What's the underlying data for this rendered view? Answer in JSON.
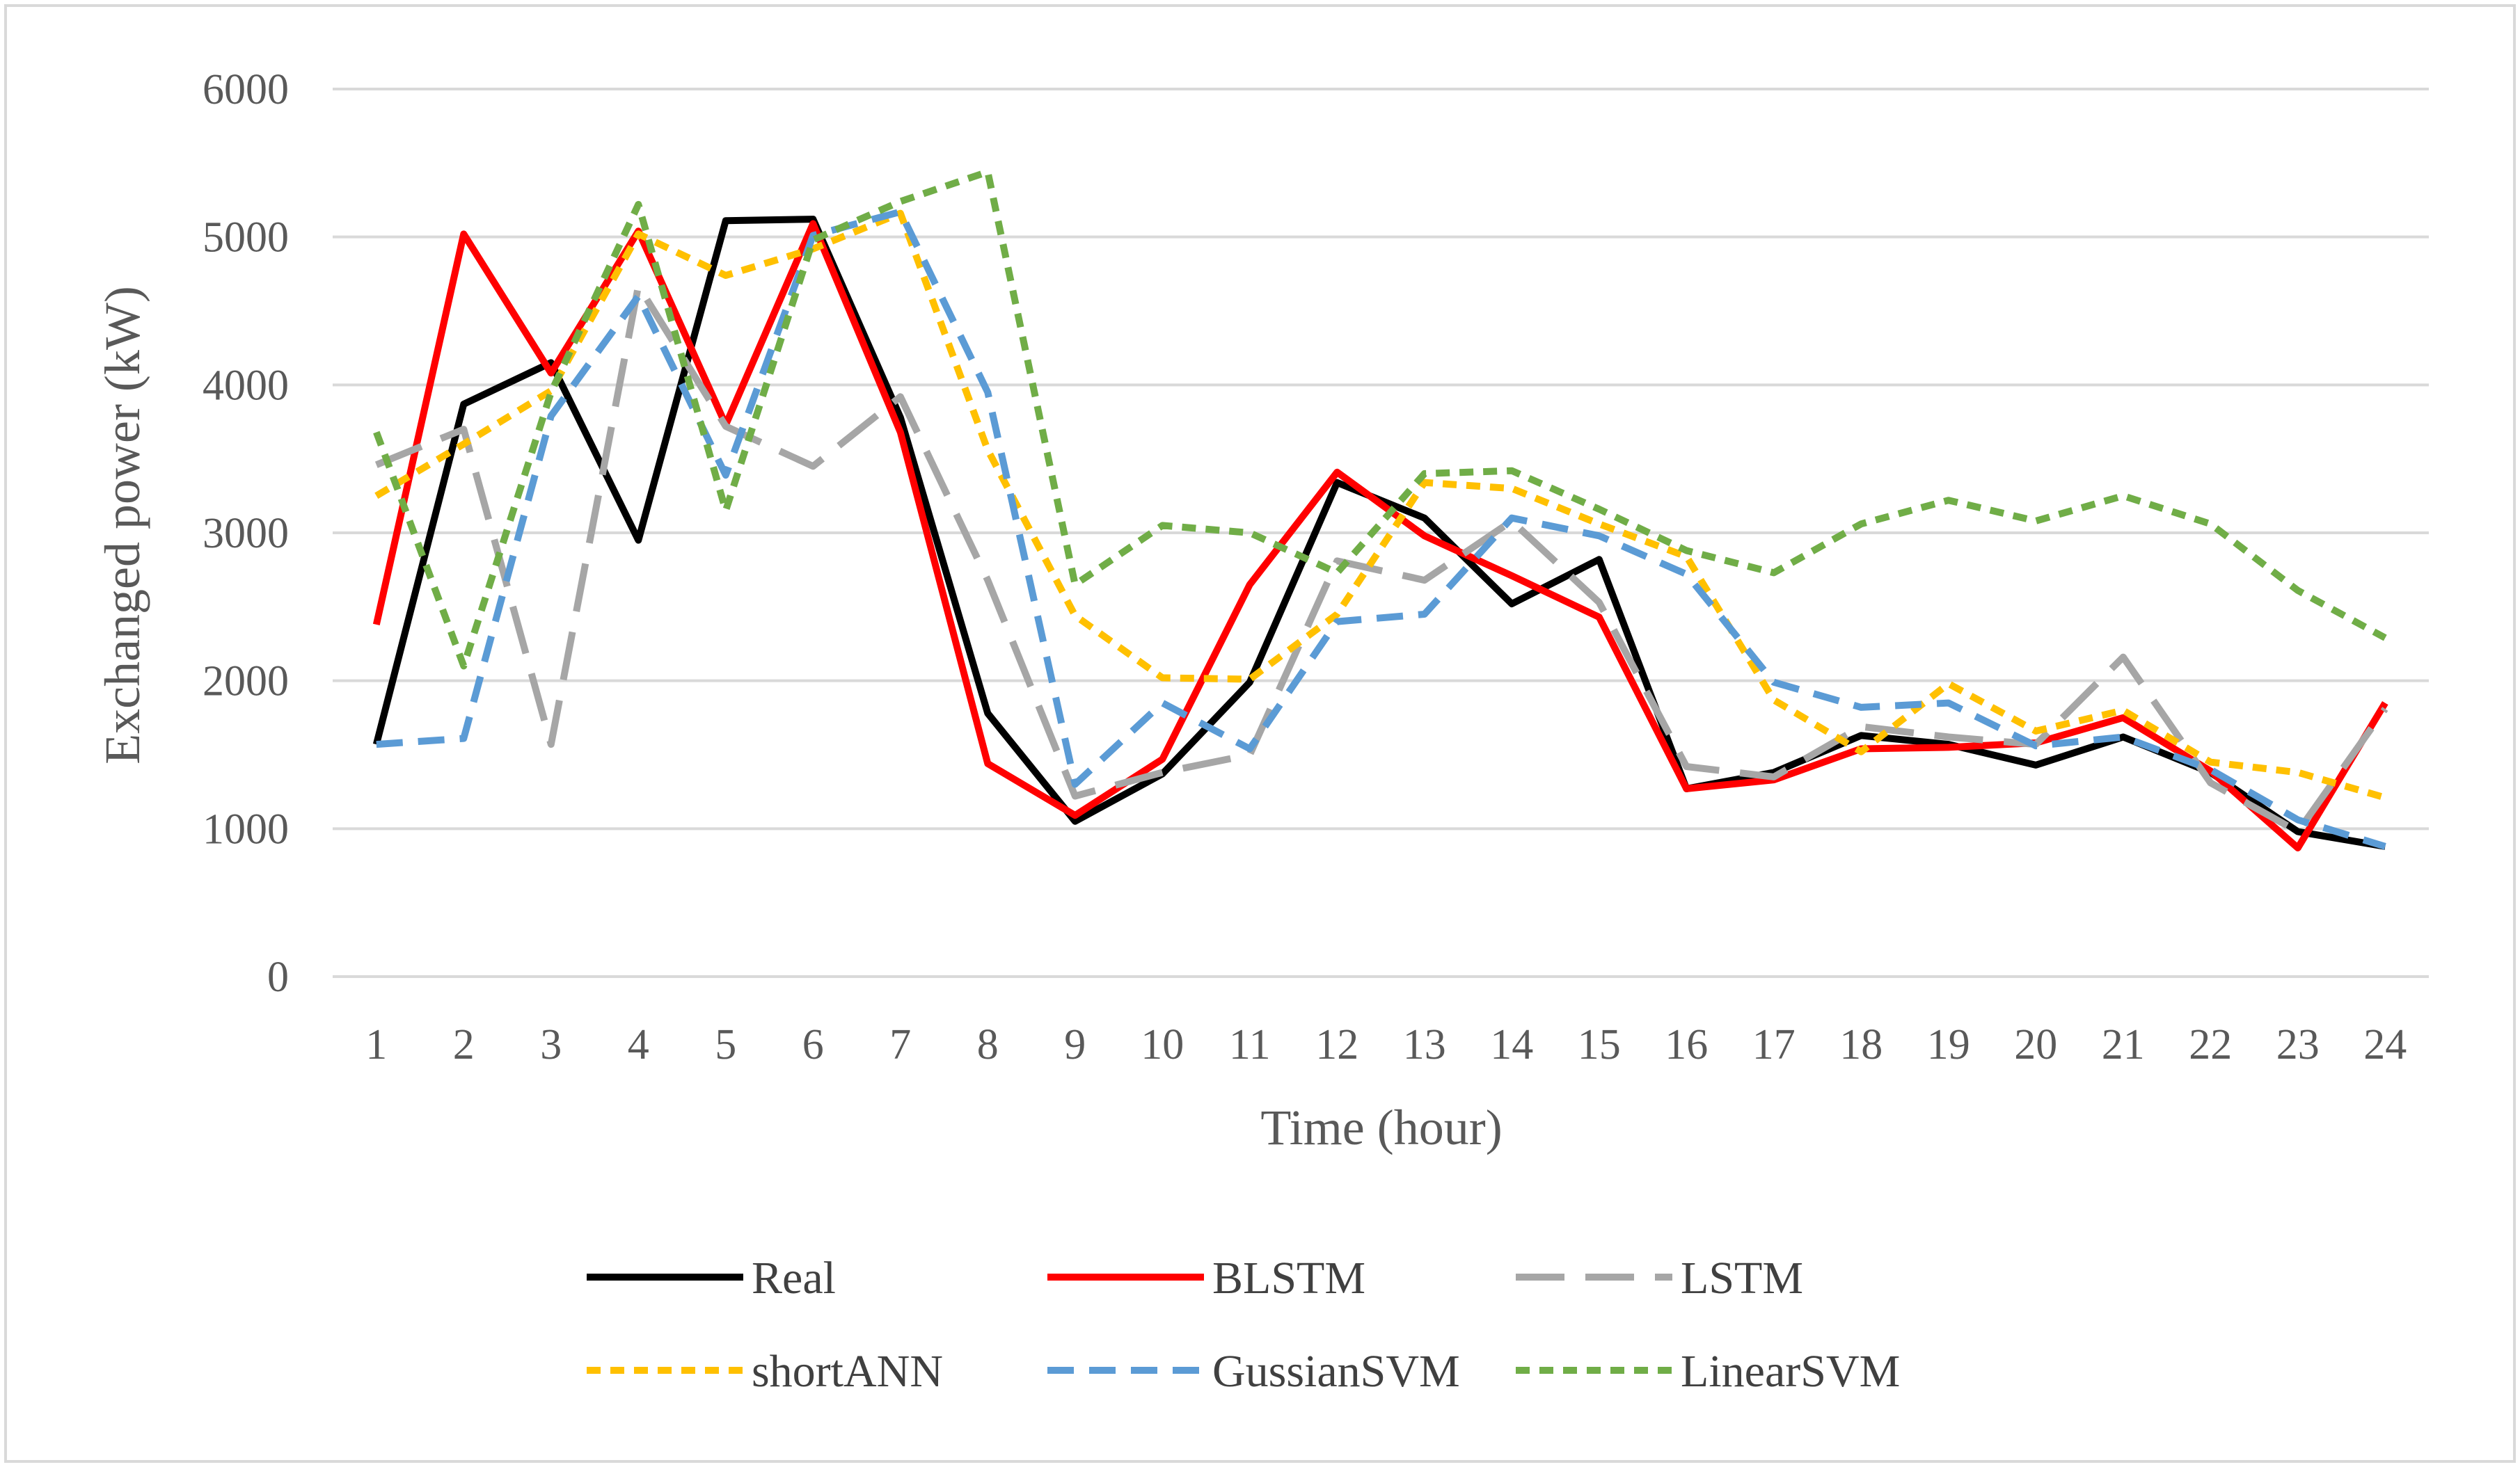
{
  "chart_data": {
    "type": "line",
    "title": "",
    "xlabel": "Time (hour)",
    "ylabel": "Exchanged power (kW)",
    "ylim": [
      0,
      6000
    ],
    "yticks": [
      0,
      1000,
      2000,
      3000,
      4000,
      5000,
      6000
    ],
    "x": [
      1,
      2,
      3,
      4,
      5,
      6,
      7,
      8,
      9,
      10,
      11,
      12,
      13,
      14,
      15,
      16,
      17,
      18,
      19,
      20,
      21,
      22,
      23,
      24
    ],
    "grid": true,
    "legend_position": "bottom",
    "series": [
      {
        "name": "Real",
        "color": "#000000",
        "dash": "solid",
        "values": [
          1570,
          3870,
          4150,
          2950,
          5110,
          5120,
          3780,
          1780,
          1050,
          1370,
          1990,
          3340,
          3100,
          2520,
          2820,
          1270,
          1380,
          1630,
          1570,
          1430,
          1620,
          1380,
          980,
          880
        ]
      },
      {
        "name": "BLSTM",
        "color": "#ff0000",
        "dash": "solid",
        "values": [
          2380,
          5020,
          4080,
          5040,
          3730,
          5090,
          3680,
          1440,
          1090,
          1470,
          2650,
          3410,
          2980,
          2710,
          2430,
          1270,
          1330,
          1540,
          1550,
          1580,
          1750,
          1390,
          870,
          1850
        ]
      },
      {
        "name": "LSTM",
        "color": "#a6a6a6",
        "dash": "longdash",
        "values": [
          3460,
          3700,
          1570,
          4670,
          3720,
          3450,
          3920,
          2680,
          1220,
          1380,
          1500,
          2810,
          2680,
          3080,
          2530,
          1420,
          1350,
          1690,
          1620,
          1570,
          2160,
          1310,
          980,
          1810
        ]
      },
      {
        "name": "shortANN",
        "color": "#ffc000",
        "dash": "shortdash",
        "values": [
          3250,
          3600,
          3960,
          5020,
          4740,
          4920,
          5160,
          3560,
          2440,
          2020,
          2010,
          2450,
          3340,
          3300,
          3060,
          2840,
          1870,
          1520,
          1980,
          1660,
          1800,
          1450,
          1380,
          1210
        ]
      },
      {
        "name": "GussianSVM",
        "color": "#5b9bd5",
        "dash": "dash",
        "values": [
          1570,
          1610,
          3790,
          4600,
          3390,
          5010,
          5170,
          3950,
          1300,
          1850,
          1540,
          2400,
          2450,
          3100,
          2980,
          2720,
          1990,
          1820,
          1850,
          1560,
          1620,
          1400,
          1060,
          880
        ]
      },
      {
        "name": "LinearSVM",
        "color": "#70ad47",
        "dash": "shortdash",
        "values": [
          3680,
          2100,
          3950,
          5220,
          3150,
          4980,
          5240,
          5440,
          2650,
          3050,
          3000,
          2730,
          3400,
          3420,
          3160,
          2880,
          2730,
          3060,
          3220,
          3080,
          3250,
          3060,
          2610,
          2290
        ]
      }
    ]
  }
}
